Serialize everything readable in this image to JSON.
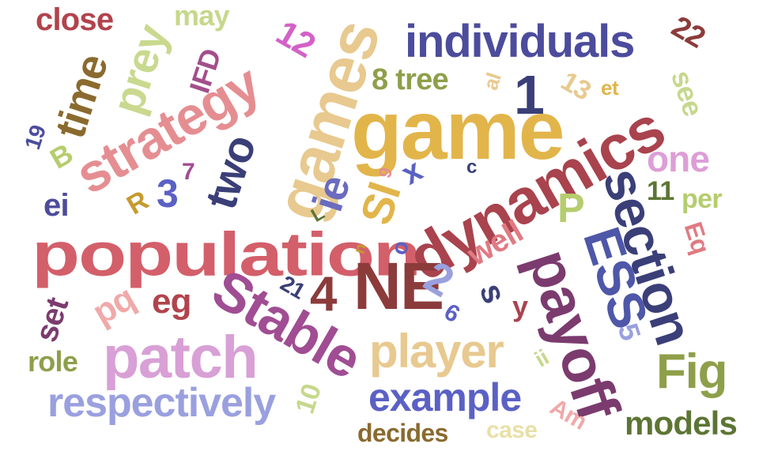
{
  "words": [
    {
      "text": "population",
      "color": "#d35f6a"
    },
    {
      "text": "game",
      "color": "#e2b54b"
    },
    {
      "text": "dynamics",
      "color": "#a9434e"
    },
    {
      "text": "games",
      "color": "#e8c98f"
    },
    {
      "text": "individuals",
      "color": "#4c4c9d"
    },
    {
      "text": "strategy",
      "color": "#e58e92"
    },
    {
      "text": "patch",
      "color": "#d8a0d6"
    },
    {
      "text": "Stable",
      "color": "#a04d93"
    },
    {
      "text": "NE",
      "color": "#8c3b3b"
    },
    {
      "text": "payoff",
      "color": "#7b3b6e"
    },
    {
      "text": "section",
      "color": "#3b3f78"
    },
    {
      "text": "ESS",
      "color": "#4e57a8"
    },
    {
      "text": "player",
      "color": "#e8c98f"
    },
    {
      "text": "respectively",
      "color": "#9aa0de"
    },
    {
      "text": "example",
      "color": "#5b61c4"
    },
    {
      "text": "Fig",
      "color": "#8e9f4a"
    },
    {
      "text": "models",
      "color": "#5d7534"
    },
    {
      "text": "prey",
      "color": "#c9d98f"
    },
    {
      "text": "time",
      "color": "#8a6a2e"
    },
    {
      "text": "close",
      "color": "#b1434c"
    },
    {
      "text": "may",
      "color": "#c6d88c"
    },
    {
      "text": "IFD",
      "color": "#a34e8c"
    },
    {
      "text": "two",
      "color": "#3b3f78"
    },
    {
      "text": "one",
      "color": "#dd9ed6"
    },
    {
      "text": "ie",
      "color": "#6b6bbf"
    },
    {
      "text": "Sl",
      "color": "#e2b54b"
    },
    {
      "text": "well",
      "color": "#e07a83"
    },
    {
      "text": "P",
      "color": "#b5cd6e"
    },
    {
      "text": "1",
      "color": "#3b3f78"
    },
    {
      "text": "2",
      "color": "#9aa0de"
    },
    {
      "text": "3",
      "color": "#5b61c4"
    },
    {
      "text": "4",
      "color": "#8c3b3b"
    },
    {
      "text": "5",
      "color": "#9aa0de"
    },
    {
      "text": "6",
      "color": "#5b61c4"
    },
    {
      "text": "7",
      "color": "#a04d93"
    },
    {
      "text": "8 tree",
      "color": "#8e9f4a"
    },
    {
      "text": "9",
      "color": "#e58e92"
    },
    {
      "text": "10",
      "color": "#c6d88c"
    },
    {
      "text": "11",
      "color": "#5d7534"
    },
    {
      "text": "12",
      "color": "#d361c7"
    },
    {
      "text": "13",
      "color": "#e8c98f"
    },
    {
      "text": "19",
      "color": "#4c4c9d"
    },
    {
      "text": "21",
      "color": "#3b3f78"
    },
    {
      "text": "22",
      "color": "#8c3b3b"
    },
    {
      "text": "eg",
      "color": "#b1434c"
    },
    {
      "text": "pq",
      "color": "#f0a9a9"
    },
    {
      "text": "set",
      "color": "#7b3b6e"
    },
    {
      "text": "ei",
      "color": "#4c4c9d"
    },
    {
      "text": "role",
      "color": "#8e9f4a"
    },
    {
      "text": "per",
      "color": "#b5cd6e"
    },
    {
      "text": "Eq",
      "color": "#e07a83"
    },
    {
      "text": "see",
      "color": "#c6d88c"
    },
    {
      "text": "et",
      "color": "#e2b54b"
    },
    {
      "text": "al",
      "color": "#e8c98f"
    },
    {
      "text": "B",
      "color": "#b5cd6e"
    },
    {
      "text": "R",
      "color": "#c69a2e"
    },
    {
      "text": "L",
      "color": "#5d7534"
    },
    {
      "text": "x",
      "color": "#5b61c4"
    },
    {
      "text": "c",
      "color": "#3b3f78"
    },
    {
      "text": "o",
      "color": "#5b61c4"
    },
    {
      "text": "n",
      "color": "#c69a2e"
    },
    {
      "text": "s",
      "color": "#3b3f78"
    },
    {
      "text": "y",
      "color": "#a9434e"
    },
    {
      "text": "ii",
      "color": "#c6d88c"
    },
    {
      "text": "Am",
      "color": "#f0a9a9"
    },
    {
      "text": "case",
      "color": "#e8e0a8"
    },
    {
      "text": "decides",
      "color": "#8a6a2e"
    }
  ]
}
